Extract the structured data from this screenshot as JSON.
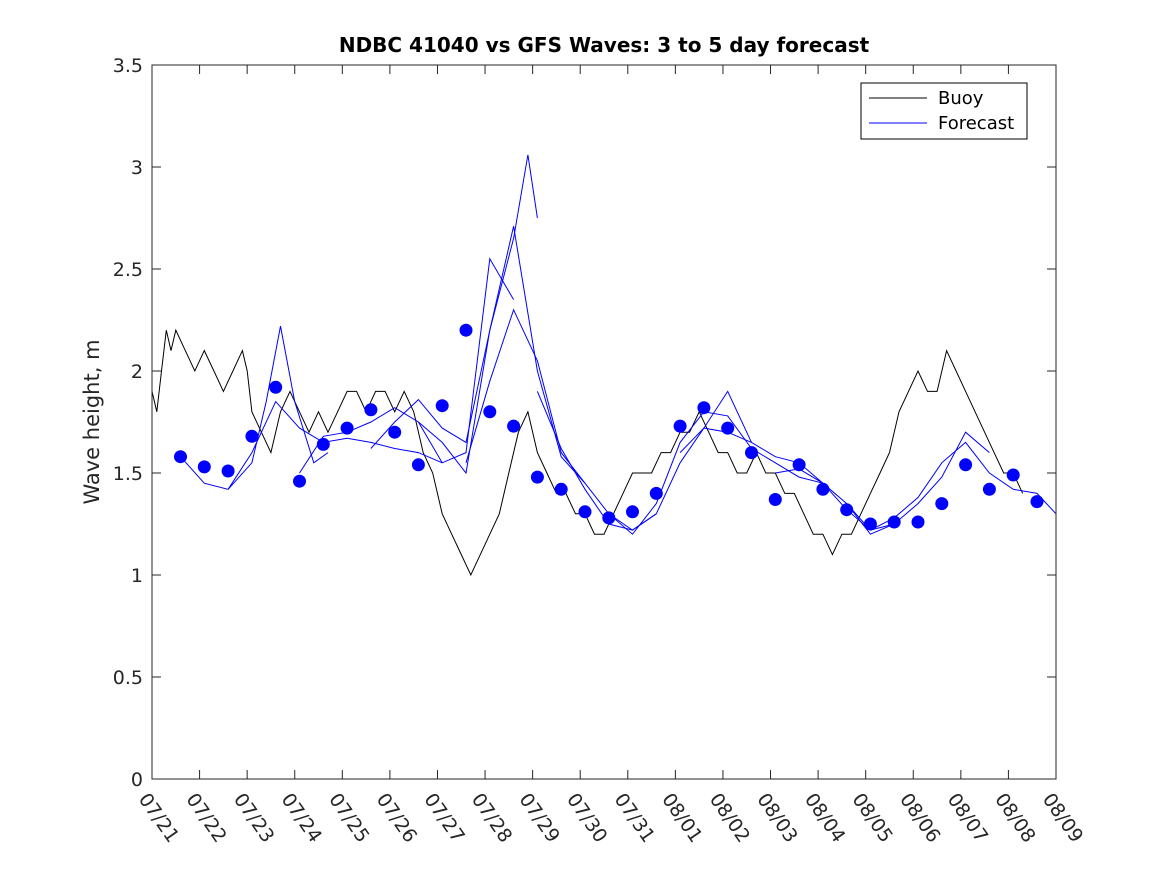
{
  "chart_data": {
    "type": "line",
    "title": "NDBC 41040 vs GFS Waves: 3 to 5 day forecast",
    "xlabel": "",
    "ylabel": "Wave height, m",
    "ylim": [
      0,
      3.5
    ],
    "yticks": [
      0,
      0.5,
      1,
      1.5,
      2,
      2.5,
      3,
      3.5
    ],
    "ytick_labels": [
      "0",
      "0.5",
      "1",
      "1.5",
      "2",
      "2.5",
      "3",
      "3.5"
    ],
    "xlim_days": [
      0,
      19
    ],
    "xtick_labels": [
      "07/21",
      "07/22",
      "07/23",
      "07/24",
      "07/25",
      "07/26",
      "07/27",
      "07/28",
      "07/29",
      "07/30",
      "07/31",
      "08/01",
      "08/02",
      "08/03",
      "08/04",
      "08/05",
      "08/06",
      "08/07",
      "08/08",
      "08/09"
    ],
    "grid": false,
    "legend": {
      "position": "top-right",
      "entries": [
        "Buoy",
        "Forecast"
      ]
    },
    "colors": {
      "buoy": "#000000",
      "forecast": "#0000ff"
    },
    "series": [
      {
        "name": "Buoy",
        "x": [
          0,
          0.1,
          0.2,
          0.3,
          0.4,
          0.5,
          0.7,
          0.9,
          1.1,
          1.3,
          1.5,
          1.7,
          1.9,
          2.0,
          2.1,
          2.3,
          2.5,
          2.7,
          2.9,
          3.1,
          3.3,
          3.5,
          3.7,
          3.9,
          4.1,
          4.3,
          4.5,
          4.7,
          4.9,
          5.1,
          5.3,
          5.5,
          5.7,
          5.9,
          6.1,
          6.3,
          6.5,
          6.7,
          6.9,
          7.1,
          7.3,
          7.5,
          7.7,
          7.9,
          8.1,
          8.3,
          8.5,
          8.7,
          8.9,
          9.1,
          9.3,
          9.5,
          9.7,
          9.9,
          10.1,
          10.3,
          10.5,
          10.7,
          10.9,
          11.1,
          11.3,
          11.5,
          11.7,
          11.9,
          12.1,
          12.3,
          12.5,
          12.7,
          12.9,
          13.1,
          13.3,
          13.5,
          13.7,
          13.9,
          14.1,
          14.3,
          14.5,
          14.7,
          14.9,
          15.1,
          15.3,
          15.5,
          15.7,
          15.9,
          16.1,
          16.3,
          16.5,
          16.7,
          16.9,
          17.1,
          17.3,
          17.5,
          17.7,
          17.9,
          18.1,
          18.3
        ],
        "y": [
          1.9,
          1.8,
          2.0,
          2.2,
          2.1,
          2.2,
          2.1,
          2.0,
          2.1,
          2.0,
          1.9,
          2.0,
          2.1,
          2.0,
          1.8,
          1.7,
          1.6,
          1.8,
          1.9,
          1.8,
          1.7,
          1.8,
          1.7,
          1.8,
          1.9,
          1.9,
          1.8,
          1.9,
          1.9,
          1.8,
          1.9,
          1.8,
          1.6,
          1.5,
          1.3,
          1.2,
          1.1,
          1.0,
          1.1,
          1.2,
          1.3,
          1.5,
          1.7,
          1.8,
          1.6,
          1.5,
          1.4,
          1.4,
          1.3,
          1.3,
          1.2,
          1.2,
          1.3,
          1.4,
          1.5,
          1.5,
          1.5,
          1.6,
          1.6,
          1.7,
          1.7,
          1.8,
          1.7,
          1.6,
          1.6,
          1.5,
          1.5,
          1.6,
          1.5,
          1.5,
          1.4,
          1.4,
          1.3,
          1.2,
          1.2,
          1.1,
          1.2,
          1.2,
          1.3,
          1.4,
          1.5,
          1.6,
          1.8,
          1.9,
          2.0,
          1.9,
          1.9,
          2.1,
          2.0,
          1.9,
          1.8,
          1.7,
          1.6,
          1.5,
          1.5,
          1.4
        ]
      },
      {
        "name": "Forecast",
        "runs": [
          {
            "x": [
              0.6,
              1.1,
              1.6,
              2.1,
              2.4,
              2.7,
              3.0,
              3.4,
              3.7
            ],
            "y": [
              1.58,
              1.45,
              1.42,
              1.55,
              1.85,
              2.22,
              1.85,
              1.55,
              1.6
            ]
          },
          {
            "x": [
              1.6,
              2.1,
              2.6,
              3.1,
              3.6,
              4.1,
              4.6,
              5.1,
              5.6,
              6.1
            ],
            "y": [
              1.42,
              1.6,
              1.85,
              1.72,
              1.65,
              1.67,
              1.65,
              1.62,
              1.6,
              1.55
            ]
          },
          {
            "x": [
              3.1,
              3.6,
              4.1,
              4.6,
              5.1,
              5.6,
              6.1,
              6.6,
              7.1,
              7.6
            ],
            "y": [
              1.5,
              1.68,
              1.7,
              1.75,
              1.82,
              1.75,
              1.55,
              1.6,
              2.55,
              2.35
            ]
          },
          {
            "x": [
              4.6,
              5.1,
              5.6,
              6.1,
              6.6,
              7.1,
              7.6,
              8.1,
              8.6,
              9.1
            ],
            "y": [
              1.62,
              1.75,
              1.86,
              1.72,
              1.65,
              2.2,
              2.71,
              2.0,
              1.58,
              1.45
            ]
          },
          {
            "x": [
              5.6,
              6.1,
              6.6,
              7.1,
              7.6,
              7.9,
              8.1
            ],
            "y": [
              1.75,
              1.65,
              1.5,
              2.2,
              2.65,
              3.06,
              2.75
            ]
          },
          {
            "x": [
              6.6,
              7.1,
              7.6,
              8.1,
              8.6,
              9.1,
              9.6,
              10.1,
              10.6
            ],
            "y": [
              1.55,
              1.95,
              2.3,
              2.05,
              1.6,
              1.45,
              1.3,
              1.22,
              1.3
            ]
          },
          {
            "x": [
              8.1,
              8.6,
              9.1,
              9.6,
              10.1,
              10.6,
              11.1,
              11.6,
              12.1,
              12.6
            ],
            "y": [
              1.9,
              1.62,
              1.42,
              1.25,
              1.22,
              1.3,
              1.55,
              1.72,
              1.7,
              1.65
            ]
          },
          {
            "x": [
              9.6,
              10.1,
              10.6,
              11.1,
              11.6,
              12.1,
              12.6,
              13.1,
              13.6,
              14.1
            ],
            "y": [
              1.3,
              1.2,
              1.35,
              1.65,
              1.8,
              1.78,
              1.62,
              1.55,
              1.48,
              1.45
            ]
          },
          {
            "x": [
              11.1,
              11.6,
              12.1,
              12.6,
              13.1,
              13.6,
              14.1,
              14.6,
              15.1,
              15.6
            ],
            "y": [
              1.6,
              1.72,
              1.9,
              1.65,
              1.58,
              1.55,
              1.45,
              1.32,
              1.22,
              1.25
            ]
          },
          {
            "x": [
              13.1,
              13.6,
              14.1,
              14.6,
              15.1,
              15.6,
              16.1,
              16.6,
              17.1,
              17.6
            ],
            "y": [
              1.5,
              1.52,
              1.45,
              1.35,
              1.2,
              1.25,
              1.35,
              1.48,
              1.7,
              1.6
            ]
          },
          {
            "x": [
              14.6,
              15.1,
              15.6,
              16.1,
              16.6,
              17.1,
              17.6,
              18.1,
              18.6,
              19.0
            ],
            "y": [
              1.35,
              1.22,
              1.28,
              1.38,
              1.55,
              1.65,
              1.5,
              1.42,
              1.4,
              1.3
            ]
          }
        ],
        "markers": {
          "x": [
            0.6,
            1.1,
            1.6,
            2.1,
            2.6,
            3.1,
            3.6,
            4.1,
            4.6,
            5.1,
            5.6,
            6.1,
            6.6,
            7.1,
            7.6,
            8.1,
            8.6,
            9.1,
            9.6,
            10.1,
            10.6,
            11.1,
            11.6,
            12.1,
            12.6,
            13.1,
            13.6,
            14.1,
            14.6,
            15.1,
            15.6,
            16.1,
            16.6,
            17.1,
            17.6,
            18.1,
            18.6
          ],
          "y": [
            1.58,
            1.53,
            1.51,
            1.68,
            1.92,
            1.46,
            1.64,
            1.72,
            1.81,
            1.7,
            1.54,
            1.83,
            2.2,
            1.8,
            1.73,
            1.48,
            1.42,
            1.31,
            1.28,
            1.31,
            1.4,
            1.73,
            1.82,
            1.72,
            1.6,
            1.37,
            1.54,
            1.42,
            1.32,
            1.25,
            1.26,
            1.26,
            1.35,
            1.54,
            1.42,
            1.49,
            1.36
          ]
        }
      }
    ]
  }
}
